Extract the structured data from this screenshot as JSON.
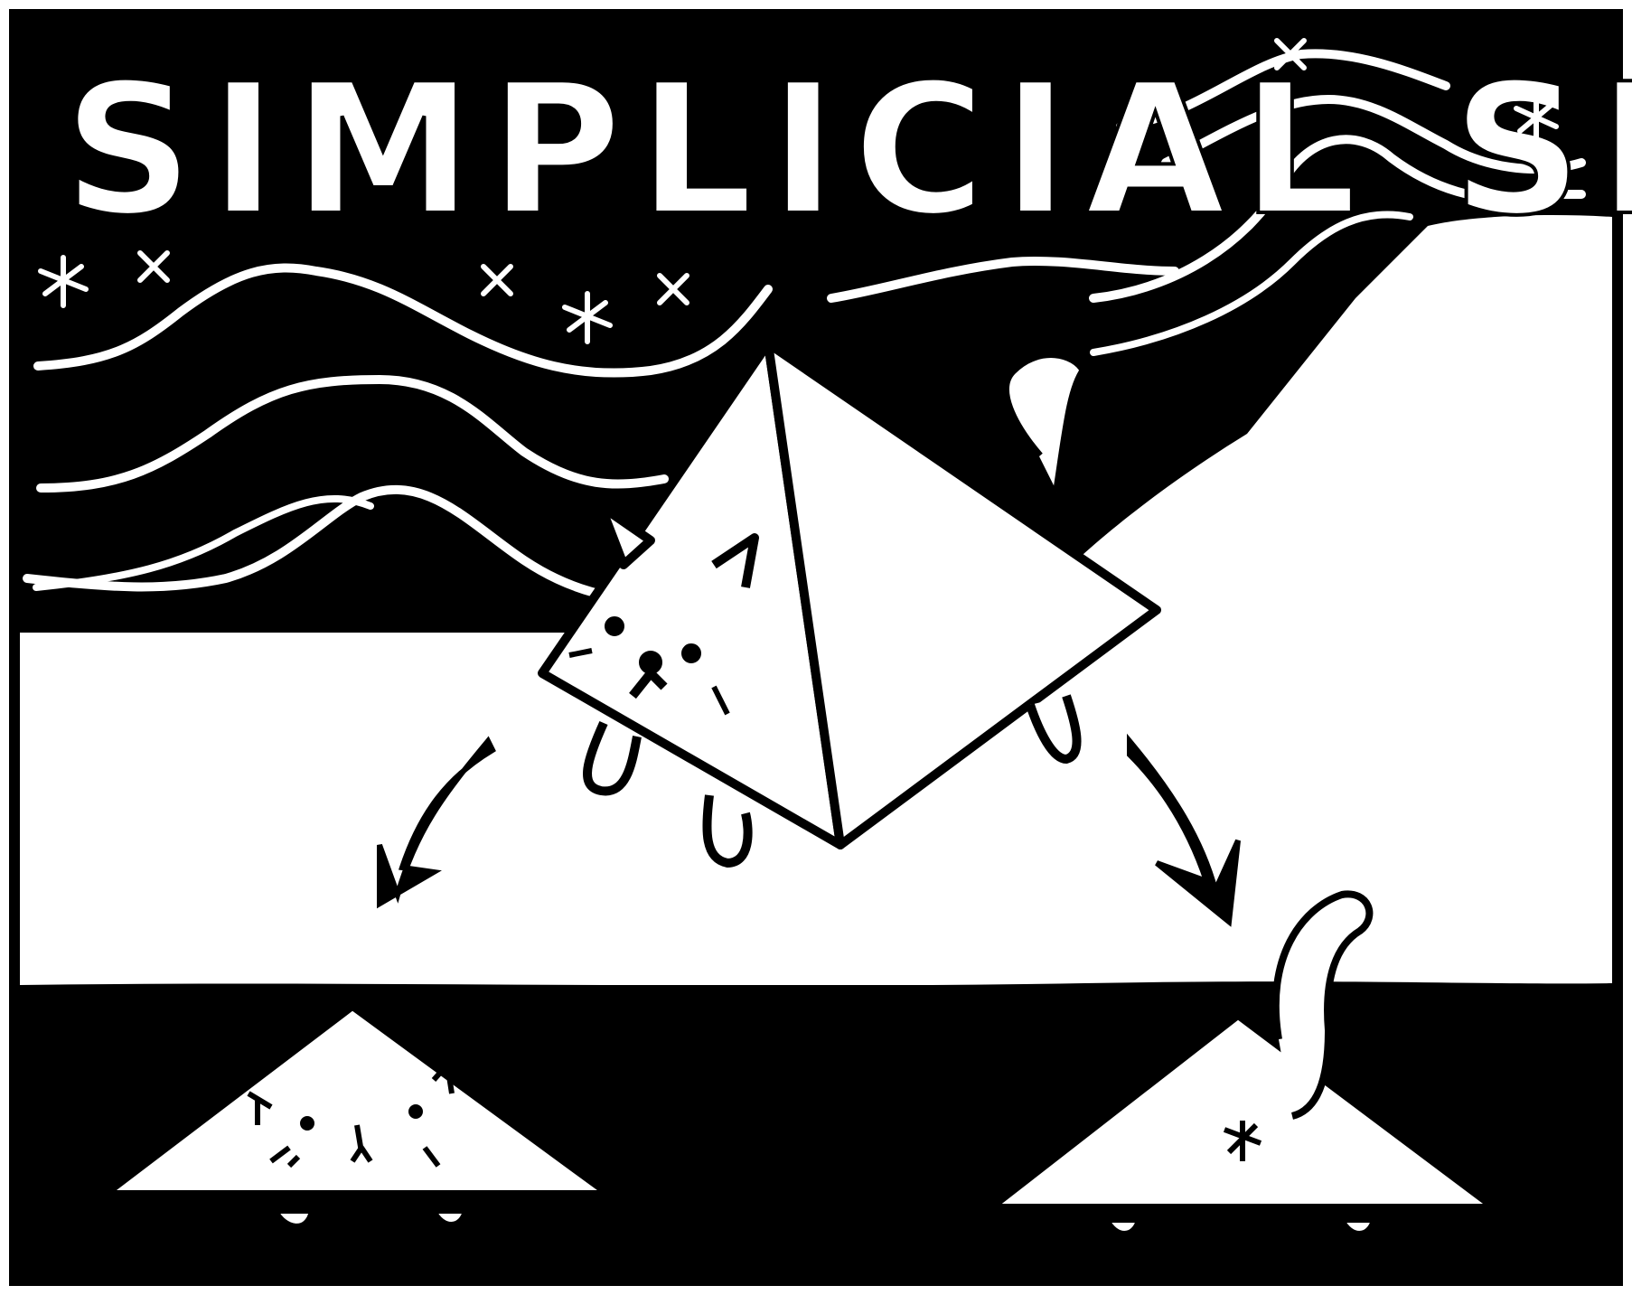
{
  "title": "SIMPLICIAL SETS",
  "colors": {
    "ink": "#000000",
    "paper": "#ffffff"
  },
  "illustration": {
    "subject": "cartoon-cat-triangle",
    "faces": [
      "upper-triangle-with-cat-face",
      "lower-left-face-triangle",
      "lower-right-tail-triangle"
    ]
  }
}
